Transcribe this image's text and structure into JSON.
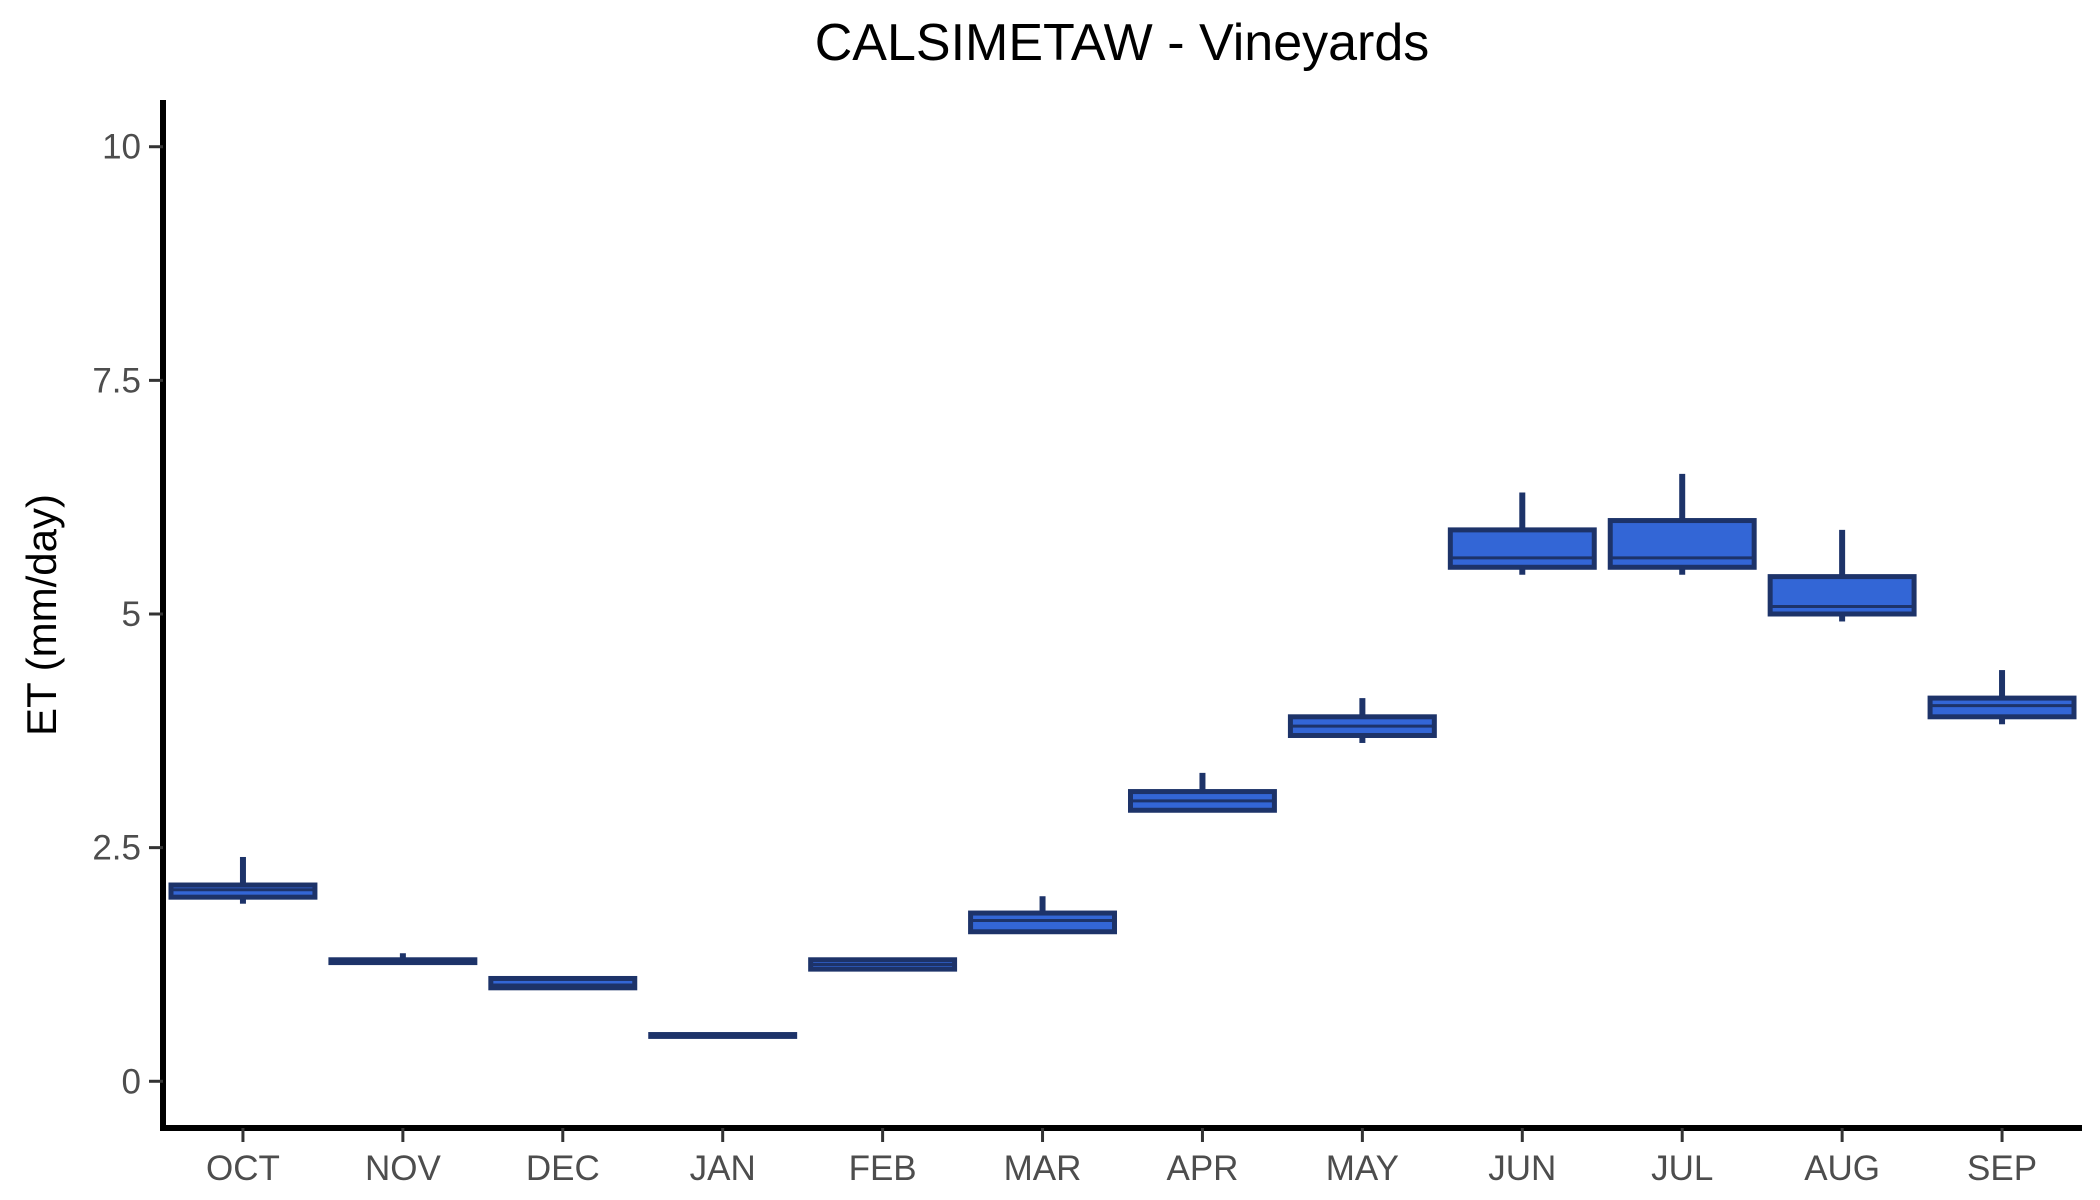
{
  "chart_data": {
    "type": "boxplot",
    "title": "CALSIMETAW - Vineyards",
    "xlabel": "",
    "ylabel": "ET (mm/day)",
    "ylim": [
      -0.5,
      10.5
    ],
    "yticks": [
      0,
      2.5,
      5,
      7.5,
      10
    ],
    "ytick_labels": [
      "0",
      "2.5",
      "5",
      "7.5",
      "10"
    ],
    "grid": false,
    "legend": "none",
    "categories": [
      "OCT",
      "NOV",
      "DEC",
      "JAN",
      "FEB",
      "MAR",
      "APR",
      "MAY",
      "JUN",
      "JUL",
      "AUG",
      "SEP"
    ],
    "boxes": [
      {
        "month": "OCT",
        "min": 1.9,
        "q1": 1.97,
        "median": 2.05,
        "q3": 2.1,
        "max": 2.4
      },
      {
        "month": "NOV",
        "min": 1.27,
        "q1": 1.27,
        "median": 1.29,
        "q3": 1.3,
        "max": 1.37
      },
      {
        "month": "DEC",
        "min": 1.0,
        "q1": 1.0,
        "median": 1.03,
        "q3": 1.1,
        "max": 1.1
      },
      {
        "month": "JAN",
        "min": 0.48,
        "q1": 0.48,
        "median": 0.5,
        "q3": 0.5,
        "max": 0.52
      },
      {
        "month": "FEB",
        "min": 1.2,
        "q1": 1.2,
        "median": 1.25,
        "q3": 1.3,
        "max": 1.32
      },
      {
        "month": "MAR",
        "min": 1.6,
        "q1": 1.6,
        "median": 1.72,
        "q3": 1.8,
        "max": 1.98
      },
      {
        "month": "APR",
        "min": 2.9,
        "q1": 2.9,
        "median": 3.0,
        "q3": 3.1,
        "max": 3.3
      },
      {
        "month": "MAY",
        "min": 3.62,
        "q1": 3.7,
        "median": 3.8,
        "q3": 3.9,
        "max": 4.1
      },
      {
        "month": "JUN",
        "min": 5.42,
        "q1": 5.5,
        "median": 5.6,
        "q3": 5.9,
        "max": 6.3
      },
      {
        "month": "JUL",
        "min": 5.42,
        "q1": 5.5,
        "median": 5.6,
        "q3": 6.0,
        "max": 6.5
      },
      {
        "month": "AUG",
        "min": 4.92,
        "q1": 5.0,
        "median": 5.08,
        "q3": 5.4,
        "max": 5.9
      },
      {
        "month": "SEP",
        "min": 3.82,
        "q1": 3.9,
        "median": 4.02,
        "q3": 4.1,
        "max": 4.4
      }
    ],
    "colors": {
      "box_fill": "#3366d6",
      "box_stroke": "#1d3369",
      "axis": "#000000",
      "tick_text": "#4d4d4d"
    }
  }
}
